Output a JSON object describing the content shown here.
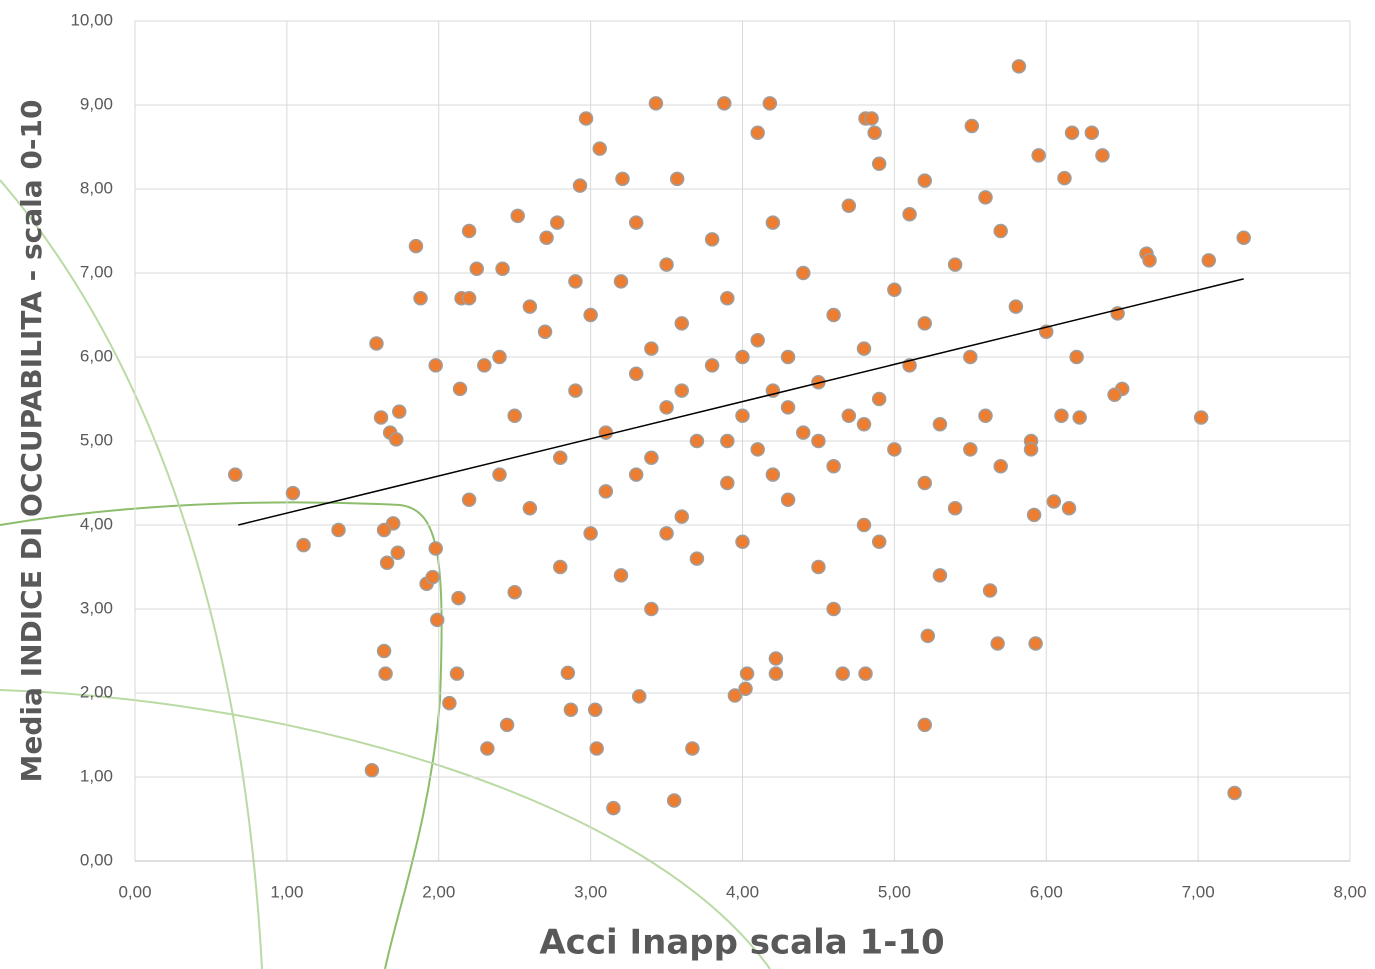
{
  "chart_data": {
    "type": "scatter",
    "x_label": "Acci Inapp scala 1-10",
    "y_label": "Media INDICE DI OCCUPABILITA - scala 0-10",
    "xlim": [
      0,
      8
    ],
    "ylim": [
      0,
      10
    ],
    "xticks": [
      {
        "value": 0,
        "label": "0,00"
      },
      {
        "value": 1,
        "label": "1,00"
      },
      {
        "value": 2,
        "label": "2,00"
      },
      {
        "value": 3,
        "label": "3,00"
      },
      {
        "value": 4,
        "label": "4,00"
      },
      {
        "value": 5,
        "label": "5,00"
      },
      {
        "value": 6,
        "label": "6,00"
      },
      {
        "value": 7,
        "label": "7,00"
      },
      {
        "value": 8,
        "label": "8,00"
      }
    ],
    "yticks": [
      {
        "value": 0,
        "label": "0,00"
      },
      {
        "value": 1,
        "label": "1,00"
      },
      {
        "value": 2,
        "label": "2,00"
      },
      {
        "value": 3,
        "label": "3,00"
      },
      {
        "value": 4,
        "label": "4,00"
      },
      {
        "value": 5,
        "label": "5,00"
      },
      {
        "value": 6,
        "label": "6,00"
      },
      {
        "value": 7,
        "label": "7,00"
      },
      {
        "value": 8,
        "label": "8,00"
      },
      {
        "value": 9,
        "label": "9,00"
      },
      {
        "value": 10,
        "label": "10,00"
      }
    ],
    "grid": true,
    "series": [
      {
        "color": "#ed7d31",
        "x": [
          0.66,
          1.04,
          1.11,
          1.34,
          1.56,
          1.59,
          1.62,
          1.64,
          1.65,
          1.66,
          1.68,
          1.72,
          1.74,
          1.73,
          1.7,
          1.64,
          1.85,
          1.88,
          1.92,
          1.96,
          1.98,
          1.99,
          1.98,
          2.07,
          2.12,
          2.2,
          2.25,
          2.14,
          2.15,
          2.2,
          2.13,
          2.32,
          2.42,
          2.45,
          2.52,
          2.71,
          2.78,
          2.85,
          2.87,
          3.03,
          3.04,
          3.15,
          2.93,
          2.97,
          3.06,
          3.21,
          3.43,
          3.55,
          3.57,
          3.67,
          3.32,
          3.88,
          4.18,
          3.95,
          4.02,
          4.03,
          4.22,
          4.22,
          4.66,
          4.81,
          5.2,
          5.22,
          5.68,
          5.93,
          5.82,
          5.51,
          6.17,
          6.3,
          6.37,
          6.12,
          5.95,
          6.66,
          6.68,
          7.07,
          7.3,
          7.02,
          7.24,
          6.47,
          6.5,
          6.45,
          6.22,
          6.15,
          6.05,
          5.92,
          5.63,
          4.81,
          4.85,
          4.1,
          4.87,
          2.5,
          2.6,
          2.7,
          2.8,
          2.9,
          3.0,
          3.0,
          3.1,
          3.1,
          3.2,
          3.2,
          3.3,
          3.3,
          3.4,
          3.4,
          3.5,
          3.5,
          3.6,
          3.6,
          3.7,
          3.7,
          3.8,
          3.8,
          3.9,
          3.9,
          4.0,
          4.0,
          4.1,
          4.1,
          4.2,
          4.2,
          4.3,
          4.3,
          4.4,
          4.4,
          4.5,
          4.5,
          4.6,
          4.6,
          4.7,
          4.7,
          4.8,
          4.8,
          4.9,
          4.9,
          5.0,
          5.0,
          5.1,
          5.1,
          5.2,
          5.2,
          5.3,
          5.4,
          5.4,
          5.5,
          5.6,
          5.6,
          5.7,
          5.8,
          5.9,
          6.0,
          2.4,
          2.3,
          2.2,
          2.5,
          2.6,
          2.8,
          3.9,
          4.0,
          4.2,
          3.6,
          4.5,
          4.3,
          3.4,
          4.8,
          5.3,
          4.6,
          3.5,
          3.3,
          4.9,
          5.2,
          5.7,
          2.9,
          2.4,
          6.2,
          6.1,
          5.5,
          5.9
        ],
        "values": [
          4.6,
          4.38,
          3.76,
          3.94,
          1.08,
          6.16,
          5.28,
          2.5,
          2.23,
          3.55,
          5.1,
          5.02,
          5.35,
          3.67,
          4.02,
          3.94,
          7.32,
          6.7,
          3.3,
          3.38,
          3.72,
          2.87,
          5.9,
          1.88,
          2.23,
          7.5,
          7.05,
          5.62,
          6.7,
          6.7,
          3.13,
          1.34,
          7.05,
          1.62,
          7.68,
          7.42,
          7.6,
          2.24,
          1.8,
          1.8,
          1.34,
          0.63,
          8.04,
          8.84,
          8.48,
          8.12,
          9.02,
          0.72,
          8.12,
          1.34,
          1.96,
          9.02,
          9.02,
          1.97,
          2.05,
          2.23,
          2.23,
          2.41,
          2.23,
          2.23,
          1.62,
          2.68,
          2.59,
          2.59,
          9.46,
          8.75,
          8.67,
          8.67,
          8.4,
          8.13,
          8.4,
          7.23,
          7.15,
          7.15,
          7.42,
          5.28,
          0.81,
          6.52,
          5.62,
          5.55,
          5.28,
          4.2,
          4.28,
          4.12,
          3.22,
          8.84,
          8.84,
          8.67,
          8.67,
          5.3,
          4.2,
          6.3,
          4.8,
          5.6,
          3.9,
          6.5,
          5.1,
          4.4,
          6.9,
          3.4,
          5.8,
          4.6,
          6.1,
          3.0,
          5.4,
          7.1,
          4.1,
          6.4,
          5.0,
          3.6,
          5.9,
          7.4,
          4.5,
          6.7,
          5.3,
          3.8,
          6.2,
          4.9,
          7.6,
          5.6,
          4.3,
          6.0,
          5.1,
          7.0,
          3.5,
          5.7,
          6.5,
          4.7,
          5.3,
          7.8,
          4.0,
          6.1,
          5.5,
          3.8,
          6.8,
          4.9,
          5.9,
          7.7,
          4.5,
          6.4,
          5.2,
          7.1,
          4.2,
          6.0,
          5.3,
          7.9,
          4.7,
          6.6,
          5.0,
          6.3,
          4.6,
          5.9,
          4.3,
          3.2,
          6.6,
          3.5,
          5.0,
          6.0,
          4.6,
          5.6,
          5.0,
          5.4,
          4.8,
          5.2,
          3.4,
          3.0,
          3.9,
          7.6,
          8.3,
          8.1,
          7.5,
          6.9,
          6.0,
          6.0,
          5.3,
          4.9,
          4.9
        ]
      }
    ],
    "trendline": {
      "x": [
        0.68,
        7.3
      ],
      "y": [
        4.0,
        6.93
      ],
      "color": "#000000"
    }
  }
}
